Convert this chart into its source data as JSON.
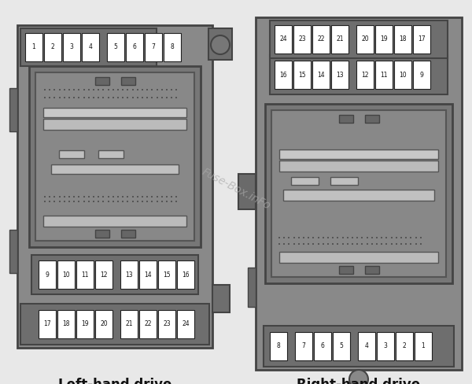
{
  "title_left": "Left-hand drive",
  "title_right": "Right-hand drive",
  "title_fontsize": 12,
  "title_fontweight": "bold",
  "bg_color": "#f0f0f0",
  "box_outer": "#888888",
  "box_mid": "#707070",
  "box_inner": "#7a7a7a",
  "box_darkest": "#444444",
  "box_connector": "#666666",
  "fuse_bg": "#ffffff",
  "fuse_border": "#222222",
  "watermark": "Fuse-Box.inFo",
  "watermark_color": "#aaaaaa",
  "lhd_top_fuses": [
    "17",
    "18",
    "19",
    "20",
    "21",
    "22",
    "23",
    "24"
  ],
  "lhd_mid_fuses": [
    "9",
    "10",
    "11",
    "12",
    "13",
    "14",
    "15",
    "16"
  ],
  "lhd_bot_fuses": [
    "1",
    "2",
    "3",
    "4",
    "5",
    "6",
    "7",
    "8"
  ],
  "rhd_top_fuses": [
    "8",
    "7",
    "6",
    "5",
    "4",
    "3",
    "2",
    "1"
  ],
  "rhd_mid_fuses": [
    "16",
    "15",
    "14",
    "13",
    "12",
    "11",
    "10",
    "9"
  ],
  "rhd_bot_fuses": [
    "24",
    "23",
    "22",
    "21",
    "20",
    "19",
    "18",
    "17"
  ]
}
